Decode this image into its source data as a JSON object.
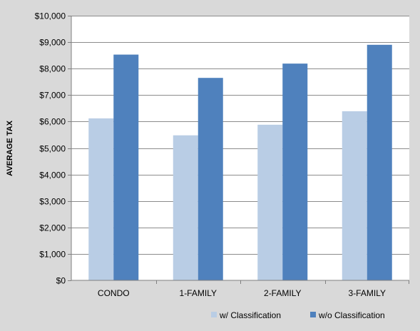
{
  "chart_data": {
    "type": "bar",
    "title": "",
    "xlabel": "",
    "ylabel": "AVERAGE TAX",
    "categories": [
      "CONDO",
      "1-FAMILY",
      "2-FAMILY",
      "3-FAMILY"
    ],
    "series": [
      {
        "name": "w/ Classification",
        "values": [
          6120,
          5480,
          5880,
          6390
        ],
        "color": "#b9cde5"
      },
      {
        "name": "w/o Classification",
        "values": [
          8530,
          7650,
          8190,
          8900
        ],
        "color": "#4f81bd"
      }
    ],
    "ylim": [
      0,
      10000
    ],
    "yticks": [
      0,
      1000,
      2000,
      3000,
      4000,
      5000,
      6000,
      7000,
      8000,
      9000,
      10000
    ],
    "ytick_labels": [
      "$0",
      "$1,000",
      "$2,000",
      "$3,000",
      "$4,000",
      "$5,000",
      "$6,000",
      "$7,000",
      "$8,000",
      "$9,000",
      "$10,000"
    ],
    "grid": true,
    "legend_position": "bottom-right",
    "background_color": "#d9d9d9",
    "plot_background_color": "#ffffff",
    "gridline_color": "#8c8c8c"
  }
}
